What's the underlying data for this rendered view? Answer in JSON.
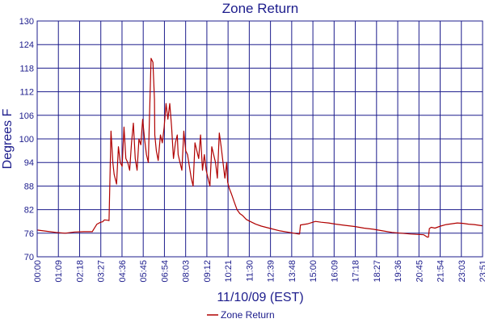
{
  "chart_data": {
    "type": "line",
    "title": "Zone Return",
    "xlabel": "11/10/09 (EST)",
    "ylabel": "Degrees F",
    "ylim": [
      70,
      130
    ],
    "yticks": [
      "70",
      "76",
      "82",
      "88",
      "94",
      "100",
      "106",
      "112",
      "118",
      "124",
      "130"
    ],
    "xlim_hours": [
      0,
      23.85
    ],
    "xticks": [
      "00:00",
      "01:09",
      "02:18",
      "03:27",
      "04:36",
      "05:45",
      "06:54",
      "08:03",
      "09:12",
      "10:21",
      "11:30",
      "12:39",
      "13:48",
      "15:00",
      "16:09",
      "17:18",
      "18:27",
      "19:36",
      "20:45",
      "21:54",
      "23:03",
      "23:51"
    ],
    "grid": true,
    "legend_position": "bottom-center",
    "colors": {
      "series": "#b00000",
      "grid": "#1c1c8c",
      "text": "#1c1c8c"
    },
    "series": [
      {
        "name": "Zone Return",
        "x": [
          0.0,
          0.5,
          1.0,
          1.5,
          2.0,
          2.5,
          2.95,
          3.0,
          3.2,
          3.4,
          3.5,
          3.6,
          3.75,
          3.77,
          3.85,
          3.95,
          4.05,
          4.12,
          4.25,
          4.35,
          4.45,
          4.55,
          4.65,
          4.75,
          4.85,
          4.95,
          5.05,
          5.15,
          5.25,
          5.35,
          5.45,
          5.55,
          5.65,
          5.75,
          5.85,
          5.95,
          6.0,
          6.1,
          6.2,
          6.28,
          6.3,
          6.38,
          6.48,
          6.6,
          6.7,
          6.8,
          6.9,
          7.0,
          7.1,
          7.2,
          7.3,
          7.4,
          7.5,
          7.55,
          7.65,
          7.75,
          7.85,
          7.95,
          8.05,
          8.15,
          8.25,
          8.35,
          8.45,
          8.55,
          8.65,
          8.75,
          8.85,
          8.95,
          9.05,
          9.15,
          9.25,
          9.35,
          9.45,
          9.55,
          9.65,
          9.75,
          9.85,
          9.95,
          10.05,
          10.15,
          10.2,
          10.28,
          10.4,
          10.55,
          10.7,
          10.85,
          11.0,
          11.2,
          11.4,
          11.7,
          12.0,
          12.5,
          13.0,
          13.5,
          14.0,
          14.05,
          14.1,
          14.5,
          14.9,
          15.2,
          15.6,
          16.0,
          16.5,
          17.0,
          17.5,
          18.0,
          18.5,
          19.0,
          19.5,
          20.0,
          20.4,
          20.7,
          20.9,
          20.95,
          21.0,
          21.1,
          21.3,
          21.6,
          21.9,
          22.2,
          22.5,
          22.8,
          23.1,
          23.4,
          23.85
        ],
        "values": [
          76.8,
          76.5,
          76.2,
          76.0,
          76.3,
          76.4,
          76.4,
          76.8,
          78.3,
          78.8,
          78.9,
          79.4,
          79.3,
          79.3,
          79.2,
          102.0,
          94.0,
          91.0,
          88.5,
          98.0,
          94.0,
          93.0,
          103.0,
          95.0,
          94.0,
          92.0,
          99.0,
          104.0,
          95.0,
          92.0,
          100.0,
          98.5,
          105.0,
          100.0,
          96.0,
          94.0,
          103.0,
          120.5,
          119.5,
          110.0,
          101.0,
          97.0,
          94.5,
          101.0,
          99.0,
          103.0,
          109.0,
          105.0,
          109.0,
          103.0,
          95.0,
          99.0,
          101.0,
          96.0,
          94.0,
          92.0,
          102.0,
          97.0,
          96.0,
          93.0,
          90.0,
          88.0,
          99.0,
          97.0,
          95.0,
          101.0,
          92.0,
          96.0,
          92.0,
          90.0,
          88.0,
          98.0,
          96.0,
          94.0,
          90.0,
          101.5,
          98.0,
          94.0,
          90.0,
          94.0,
          89.0,
          87.5,
          86.0,
          84.0,
          82.0,
          81.0,
          80.5,
          79.5,
          79.0,
          78.3,
          77.8,
          77.2,
          76.6,
          76.2,
          75.8,
          75.8,
          78.1,
          78.4,
          79.0,
          78.8,
          78.6,
          78.3,
          78.0,
          77.7,
          77.3,
          77.0,
          76.6,
          76.2,
          76.0,
          75.8,
          75.7,
          75.6,
          75.0,
          75.0,
          77.2,
          77.5,
          77.3,
          77.8,
          78.2,
          78.4,
          78.6,
          78.5,
          78.3,
          78.2,
          77.9
        ]
      }
    ]
  }
}
